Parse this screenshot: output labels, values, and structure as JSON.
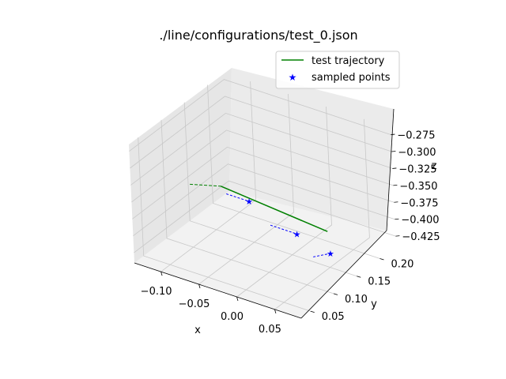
{
  "chart_data": {
    "type": "line3d",
    "title": "./line/configurations/test_0.json",
    "xlabel": "x",
    "ylabel": "y",
    "zlabel": "z",
    "xlim": [
      -0.135,
      0.085
    ],
    "ylim": [
      0.03,
      0.235
    ],
    "zlim": [
      -0.44,
      -0.265
    ],
    "x_ticks": [
      -0.1,
      -0.05,
      0.0,
      0.05
    ],
    "x_tick_labels": [
      "−0.10",
      "−0.05",
      "0.00",
      "0.05"
    ],
    "y_ticks": [
      0.05,
      0.1,
      0.15,
      0.2
    ],
    "y_tick_labels": [
      "0.05",
      "0.10",
      "0.15",
      "0.20"
    ],
    "z_ticks": [
      -0.275,
      -0.3,
      -0.325,
      -0.35,
      -0.375,
      -0.4,
      -0.425
    ],
    "z_tick_labels": [
      "−0.275",
      "−0.300",
      "−0.325",
      "−0.350",
      "−0.375",
      "−0.400",
      "−0.425"
    ],
    "grid": true,
    "legend_position": "top-right",
    "series": [
      {
        "name": "test trajectory",
        "kind": "line",
        "color": "#008000",
        "x": [
          -0.12,
          -0.085,
          0.055
        ],
        "y": [
          0.13,
          0.14,
          0.14
        ],
        "z": [
          -0.37,
          -0.365,
          -0.38
        ]
      },
      {
        "name": "sampled points",
        "kind": "scatter",
        "marker": "star",
        "color": "#0000ff",
        "x": [
          -0.045,
          0.03,
          0.08
        ],
        "y": [
          0.135,
          0.115,
          0.105
        ],
        "z": [
          -0.37,
          -0.38,
          -0.385
        ]
      }
    ],
    "direction_segments": [
      {
        "color": "#0000ff",
        "x": [
          -0.075,
          -0.045
        ],
        "y": [
          0.135,
          0.135
        ],
        "z": [
          -0.37,
          -0.37
        ]
      },
      {
        "color": "#0000ff",
        "x": [
          -0.005,
          0.03
        ],
        "y": [
          0.115,
          0.115
        ],
        "z": [
          -0.38,
          -0.38
        ]
      },
      {
        "color": "#0000ff",
        "x": [
          0.06,
          0.08
        ],
        "y": [
          0.1,
          0.105
        ],
        "z": [
          -0.395,
          -0.385
        ]
      }
    ]
  }
}
